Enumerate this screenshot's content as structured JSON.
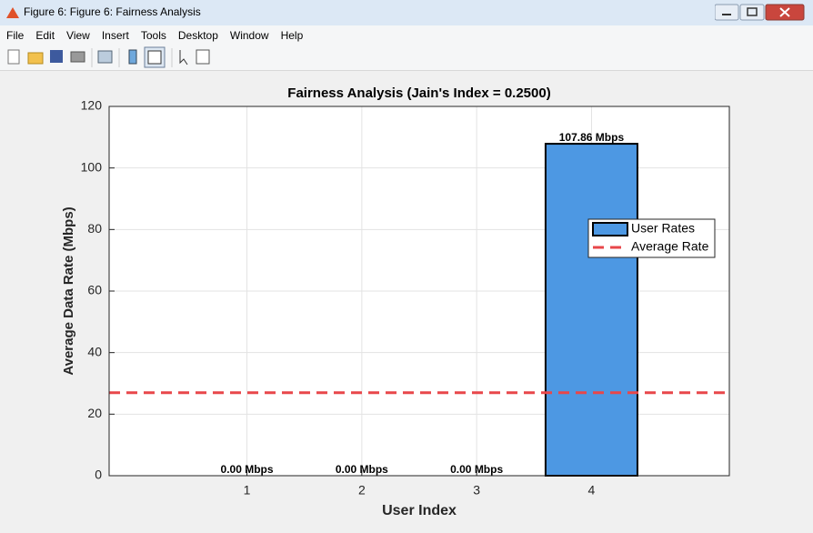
{
  "window": {
    "title": "Figure 6: Figure 6: Fairness Analysis",
    "menu": [
      "File",
      "Edit",
      "View",
      "Insert",
      "Tools",
      "Desktop",
      "Window",
      "Help"
    ]
  },
  "chart_data": {
    "type": "bar",
    "title": "Fairness Analysis (Jain's Index = 0.2500)",
    "xlabel": "User Index",
    "ylabel": "Average Data Rate (Mbps)",
    "x": [
      1,
      2,
      3,
      4
    ],
    "series": [
      {
        "name": "User Rates",
        "color": "#4d98e3",
        "values": [
          0,
          0,
          0,
          107.86
        ],
        "value_labels": [
          "0.00 Mbps",
          "0.00 Mbps",
          "0.00 Mbps",
          "107.86 Mbps"
        ]
      }
    ],
    "reference_line": {
      "name": "Average Rate",
      "color": "#e8474a",
      "value": 26.97
    },
    "xlim": [
      -0.2,
      5.2
    ],
    "xticks": [
      1,
      2,
      3,
      4
    ],
    "ylim": [
      0,
      120
    ],
    "yticks": [
      0,
      20,
      40,
      60,
      80,
      100,
      120
    ],
    "grid": true,
    "legend": "east"
  }
}
